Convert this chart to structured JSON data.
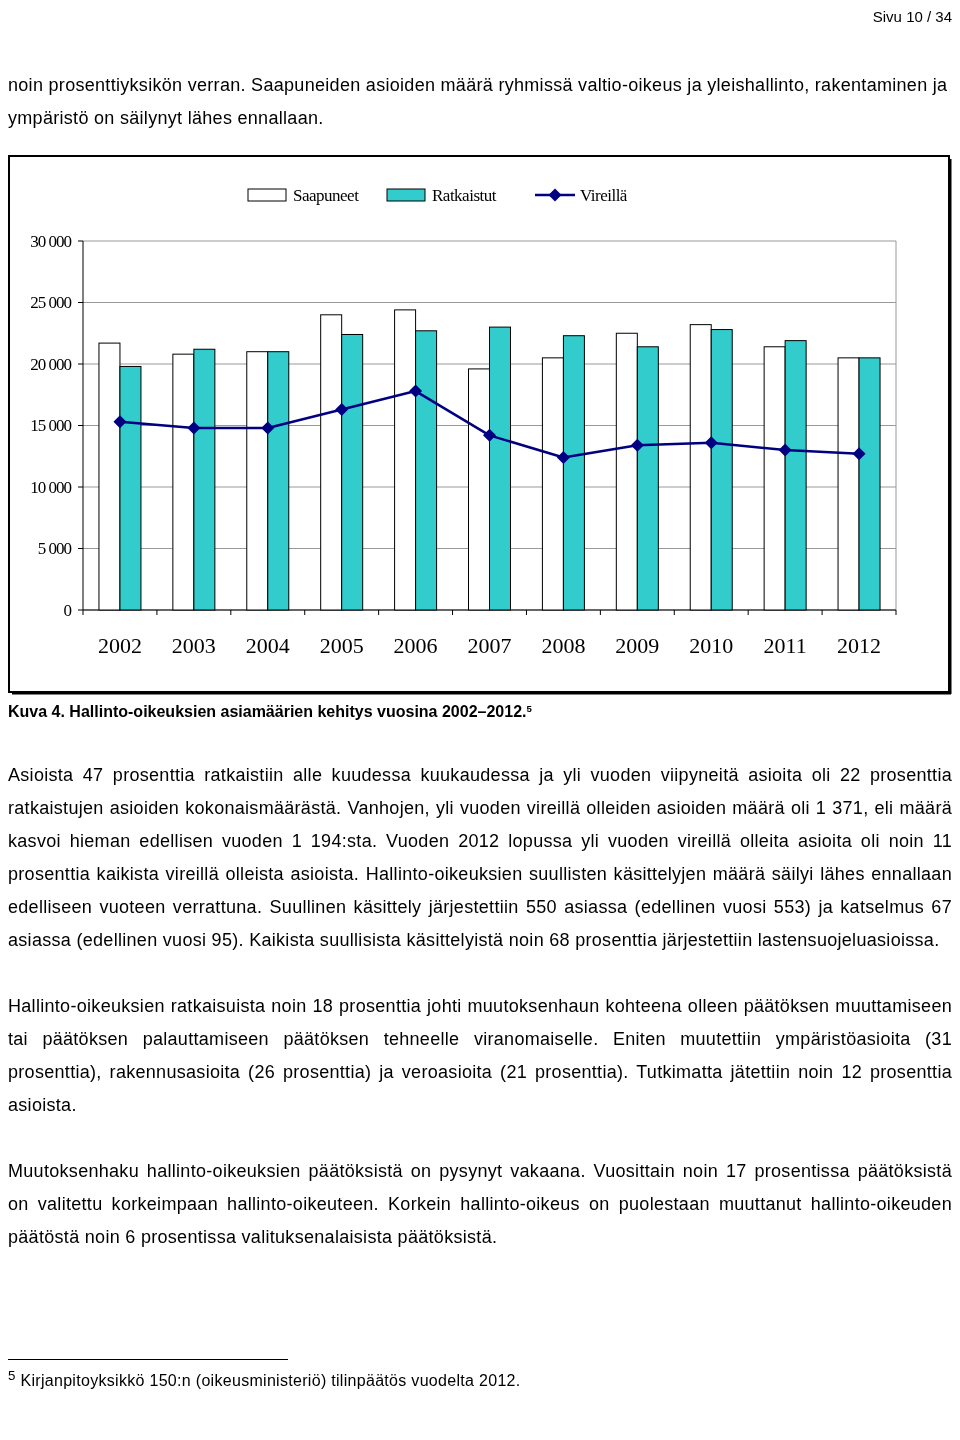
{
  "chart_data": {
    "type": "bar",
    "title": "Kuva 4. Hallinto-oikeuksien asiamäärien kehitys vuosina 2002–2012.$^{5}$",
    "categories": [
      "2002",
      "2003",
      "2004",
      "2005",
      "2006",
      "2007",
      "2008",
      "2009",
      "2010",
      "2011",
      "2012"
    ],
    "series": [
      {
        "name": "Saapuneet",
        "color": "#ffffff",
        "values": [
          21700,
          20800,
          21000,
          24000,
          24400,
          19600,
          20500,
          22500,
          23200,
          21400,
          20500
        ]
      },
      {
        "name": "Ratkaistut",
        "color": "#33cccc",
        "values": [
          19800,
          21200,
          21000,
          22400,
          22700,
          23000,
          22300,
          21400,
          22800,
          21900,
          20500
        ]
      },
      {
        "name": "Vireillä",
        "type": "line",
        "color": "#000080",
        "marker": "diamond",
        "values": [
          15300,
          14800,
          14800,
          16300,
          17800,
          14200,
          12400,
          13400,
          13600,
          13000,
          12700
        ]
      }
    ],
    "ylim": [
      0,
      30000
    ],
    "yticks": [
      {
        "value": 0,
        "label": "0"
      },
      {
        "value": 5000,
        "label": "5 000"
      },
      {
        "value": 10000,
        "label": "10 000"
      },
      {
        "value": 15000,
        "label": "15 000"
      },
      {
        "value": 20000,
        "label": "20 000"
      },
      {
        "value": 25000,
        "label": "25 000"
      },
      {
        "value": 30000,
        "label": "30 000"
      }
    ],
    "grid": "y",
    "legend": "top",
    "annotations": [
      "Sivu 10 / 34",
      "noin prosenttiyksikön verran. Saapuneiden asioiden määrä ryhmissä valtio-oikeus ja yleishallinto, rakentaminen ja ympäristö on säilynyt lähes ennallaan.",
      "Asioista 47 prosenttia ratkaistiin alle kuudessa kuukaudessa ja yli vuoden viipyneitä asioita oli 22 prosenttia ratkaistujen asioiden kokonaismäärästä. Vanhojen, yli vuoden vireillä olleiden asioiden määrä oli 1 371, eli määrä kasvoi hieman edellisen vuoden 1 194:sta. Vuoden 2012 lopussa yli vuoden vireillä olleita asioita oli noin 11 prosenttia kaikista vireillä olleista asioista. Hallinto-oikeuksien suullisten käsittelyjen määrä säilyi lähes ennallaan edelliseen vuoteen verrattuna. Suullinen käsittely järjestettiin 550 asiassa (edellinen vuosi 553) ja katselmus 67 asiassa (edellinen vuosi 95). Kaikista suullisista käsittelyistä noin 68 prosenttia järjestettiin lastensuojeluasioissa.",
      "Hallinto-oikeuksien ratkaisuista noin 18 prosenttia johti muutoksenhaun kohteena olleen päätöksen muuttamiseen tai päätöksen palauttamiseen päätöksen tehneelle viranomaiselle. Eniten muutettiin ympäristöasioita (31 prosenttia), rakennusasioita (26 prosenttia) ja veroasioita (21 prosenttia). Tutkimatta jätettiin noin 12 prosenttia asioista.",
      "Muutoksenhaku hallinto-oikeuksien päätöksistä on pysynyt vakaana. Vuosittain noin 17 prosentissa päätöksistä on valitettu korkeimpaan hallinto-oikeuteen. Korkein hallinto-oikeus on puolestaan muuttanut hallinto-oikeuden päätöstä noin 6 prosentissa valituksenalaisista päätöksistä.",
      "$^{5}$ Kirjanpitoyksikkö 150:n (oikeusministeriö) tilinpäätös vuodelta 2012."
    ]
  }
}
